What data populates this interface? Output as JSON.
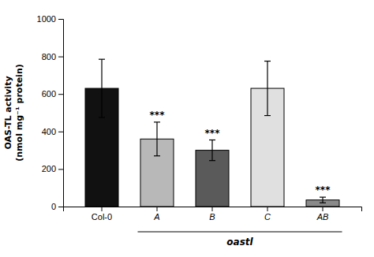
{
  "chart_data": {
    "type": "bar",
    "categories": [
      "Col-0",
      "A",
      "B",
      "C",
      "AB"
    ],
    "values": [
      630,
      360,
      300,
      630,
      35
    ],
    "errors": [
      155,
      90,
      55,
      145,
      15
    ],
    "colors": [
      "#111111",
      "#b8b8b8",
      "#5a5a5a",
      "#e0e0e0",
      "#8a8a8a"
    ],
    "ylabel": [
      "OAS-TL activity",
      "(nmol mg⁻¹ protein)"
    ],
    "ylim": [
      0,
      1000
    ],
    "yticks": [
      0,
      200,
      400,
      600,
      800,
      1000
    ],
    "grid": false,
    "annotations": [
      {
        "category": "A",
        "text": "***"
      },
      {
        "category": "B",
        "text": "***"
      },
      {
        "category": "AB",
        "text": "***"
      }
    ],
    "group_label": {
      "text": "oastl",
      "categories": [
        "A",
        "B",
        "C",
        "AB"
      ]
    }
  }
}
